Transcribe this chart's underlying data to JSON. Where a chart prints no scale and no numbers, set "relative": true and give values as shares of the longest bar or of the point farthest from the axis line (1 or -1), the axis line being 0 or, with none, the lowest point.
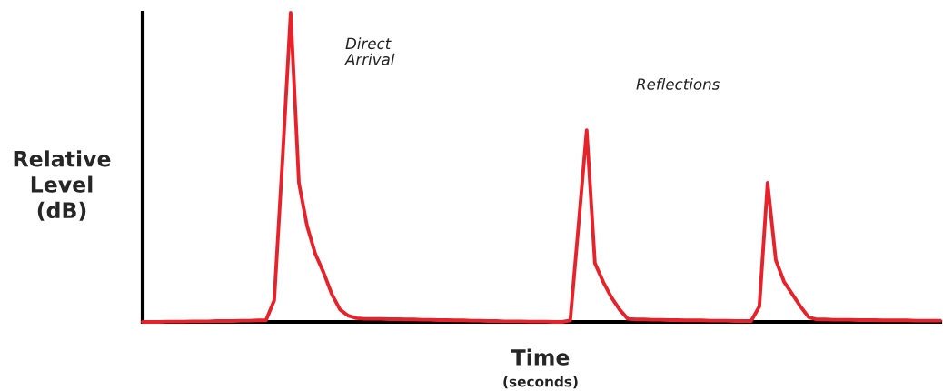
{
  "chart_data": {
    "type": "line",
    "relative": true,
    "xlabel": "Time",
    "ylabel": "Relative\nLevel\n(dB)",
    "annotations": [
      "(seconds)",
      "Direct\nArrival",
      "Reflections"
    ],
    "categories": [
      null,
      null,
      null,
      null,
      null,
      null,
      null,
      null,
      null,
      null,
      null,
      null,
      null,
      null,
      null,
      null,
      null,
      null,
      null,
      null,
      null,
      null,
      null,
      null,
      null,
      null,
      null,
      null,
      null,
      null,
      null,
      null,
      null,
      null,
      null,
      null,
      null,
      null,
      null,
      null,
      null,
      null,
      null,
      null,
      null,
      null,
      null,
      null,
      null,
      null,
      null,
      null,
      null,
      null,
      null,
      null,
      null,
      null,
      null,
      null,
      null,
      null,
      null,
      null,
      null,
      null,
      null,
      null,
      null,
      null,
      null,
      null,
      null,
      null,
      null,
      null,
      null,
      null,
      null,
      null,
      null,
      null,
      null,
      null,
      null,
      null,
      null,
      null,
      null,
      null,
      null,
      null,
      null,
      null,
      null,
      null,
      null,
      null
    ],
    "series": [
      {
        "color": "#e8222a",
        "values": [
          0,
          0,
          0,
          0.001,
          0.001,
          0.001,
          0.002,
          0.002,
          0.002,
          0.003,
          0.003,
          0.003,
          0.004,
          0.004,
          0.005,
          0.005,
          0.07,
          0.52,
          1.0,
          0.45,
          0.31,
          0.22,
          0.16,
          0.09,
          0.04,
          0.02,
          0.012,
          0.01,
          0.01,
          0.01,
          0.009,
          0.009,
          0.008,
          0.008,
          0.007,
          0.007,
          0.006,
          0.006,
          0.005,
          0.005,
          0.004,
          0.004,
          0.003,
          0.003,
          0.002,
          0.002,
          0.002,
          0.001,
          0.001,
          0.001,
          0,
          0,
          0.005,
          0.31,
          0.62,
          0.19,
          0.13,
          0.08,
          0.04,
          0.01,
          0.008,
          0.008,
          0.007,
          0.007,
          0.006,
          0.006,
          0.005,
          0.005,
          0.005,
          0.004,
          0.004,
          0.004,
          0.003,
          0.003,
          0.003,
          0.05,
          0.45,
          0.2,
          0.13,
          0.09,
          0.05,
          0.015,
          0.008,
          0.008,
          0.007,
          0.007,
          0.007,
          0.006,
          0.006,
          0.006,
          0.005,
          0.005,
          0.005,
          0.005,
          0.004,
          0.004,
          0.004,
          0.004
        ]
      }
    ]
  }
}
